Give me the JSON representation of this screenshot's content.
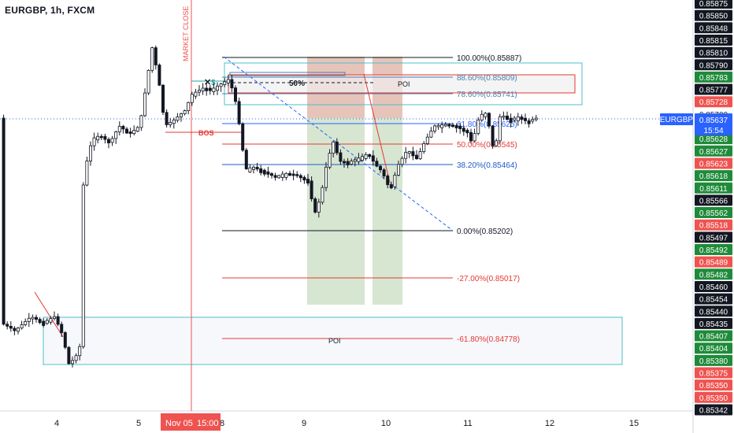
{
  "symbol": "EURGBP, 1h, FXCM",
  "colors": {
    "up": "#26a69a",
    "down": "#ef5350",
    "candle": "#131722",
    "accent": "#2962ff"
  },
  "chart_data": {
    "type": "candlestick",
    "x_ticks": [
      "4",
      "5",
      "8",
      "9",
      "10",
      "11",
      "12",
      "15"
    ],
    "x_highlight": [
      "Nov 05",
      "15:00"
    ],
    "y_ticks": [
      "0.85875",
      "0.85850",
      "0.85848",
      "0.85815",
      "0.85810",
      "0.85790",
      "0.85783",
      "0.85777",
      "0.85728",
      "0.85700",
      "0.85637",
      "0.85628",
      "0.85627",
      "0.85623",
      "0.85618",
      "0.85611",
      "0.85566",
      "0.85562",
      "0.85518",
      "0.85497",
      "0.85492",
      "0.85489",
      "0.85482",
      "0.85460",
      "0.85454",
      "0.85440",
      "0.85435",
      "0.85407",
      "0.85404",
      "0.85380",
      "0.85375",
      "0.85350",
      "0.85350",
      "0.85342"
    ],
    "price_tag": {
      "symbol": "EURGBP",
      "price": "0.85637",
      "countdown": "15:54"
    },
    "market_close_label": "MARKET CLOSE",
    "fib_levels": [
      {
        "label": "100.00%(0.85887)",
        "value": 0.85887
      },
      {
        "label": "88.60%(0.85809)",
        "value": 0.85809
      },
      {
        "label": "78.60%(0.85741)",
        "value": 0.85741
      },
      {
        "label": "61.80%(0.85625)",
        "value": 0.85625
      },
      {
        "label": "50.00%(0.85545)",
        "value": 0.85545
      },
      {
        "label": "38.20%(0.85464)",
        "value": 0.85464
      },
      {
        "label": "0.00%(0.85202)",
        "value": 0.85202
      },
      {
        "label": "-27.00%(0.85017)",
        "value": 0.85017
      },
      {
        "label": "-61.80%(0.84778)",
        "value": 0.84778
      }
    ],
    "annotations": {
      "bos": "BOS",
      "half": "50%",
      "poi_top": "POI",
      "poi_bottom": "POI",
      "x_mark": "✕",
      "dollar": "$"
    }
  }
}
